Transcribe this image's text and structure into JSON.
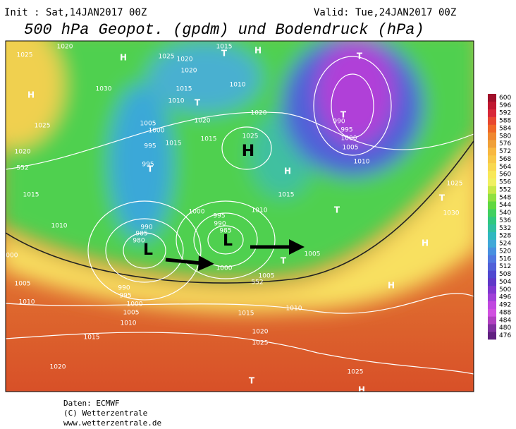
{
  "header": {
    "init": "Init : Sat,14JAN2017 00Z",
    "valid": "Valid: Tue,24JAN2017 00Z",
    "title": "500 hPa Geopot. (gpdm) und Bodendruck (hPa)"
  },
  "map_labels": [
    "1025",
    "1020",
    "H",
    "1030",
    "1025",
    "1020",
    "552",
    "1015",
    "1010",
    "1000",
    "1005",
    "1010",
    "1015",
    "1020",
    "H",
    "1025",
    "1020",
    "1020",
    "1015",
    "1010",
    "T",
    "1005",
    "1000",
    "995",
    "1015",
    "995",
    "T",
    "1020",
    "1015",
    "1020",
    "1025",
    "H",
    "1015",
    "T",
    "H",
    "1010",
    "1000",
    "995",
    "990",
    "985",
    "1010",
    "L",
    "1000",
    "990",
    "985",
    "980",
    "L",
    "990",
    "995",
    "1000",
    "1005",
    "1010",
    "1005",
    "552",
    "T",
    "1005",
    "1010",
    "1015",
    "1020",
    "1025",
    "T",
    "1025",
    "H",
    "T",
    "T",
    "990",
    "995",
    "1000",
    "1005",
    "1010",
    "H",
    "1015",
    "T",
    "1025",
    "T",
    "1030",
    "H",
    "H"
  ],
  "colorbar": {
    "values": [
      476,
      480,
      484,
      488,
      492,
      496,
      500,
      504,
      508,
      512,
      516,
      520,
      524,
      528,
      532,
      536,
      540,
      544,
      548,
      552,
      556,
      560,
      564,
      568,
      572,
      576,
      580,
      584,
      588,
      592,
      596,
      600
    ],
    "colors": [
      "#602080",
      "#8030a0",
      "#b040c0",
      "#d050e0",
      "#c048e0",
      "#a040d8",
      "#8038d0",
      "#6038c8",
      "#5048d0",
      "#5060d8",
      "#5078e0",
      "#4890e0",
      "#40a8d8",
      "#30b8c0",
      "#30c0a0",
      "#30c880",
      "#40d060",
      "#60d840",
      "#90e040",
      "#c8e848",
      "#f0f060",
      "#f8e858",
      "#f8d850",
      "#f8c848",
      "#f8b840",
      "#f0a038",
      "#f08830",
      "#f06828",
      "#e84830",
      "#d82838",
      "#c01830",
      "#a0102a"
    ]
  },
  "footer": [
    "Daten: ECMWF",
    "(C) Wetterzentrale",
    "www.wetterzentrale.de"
  ]
}
